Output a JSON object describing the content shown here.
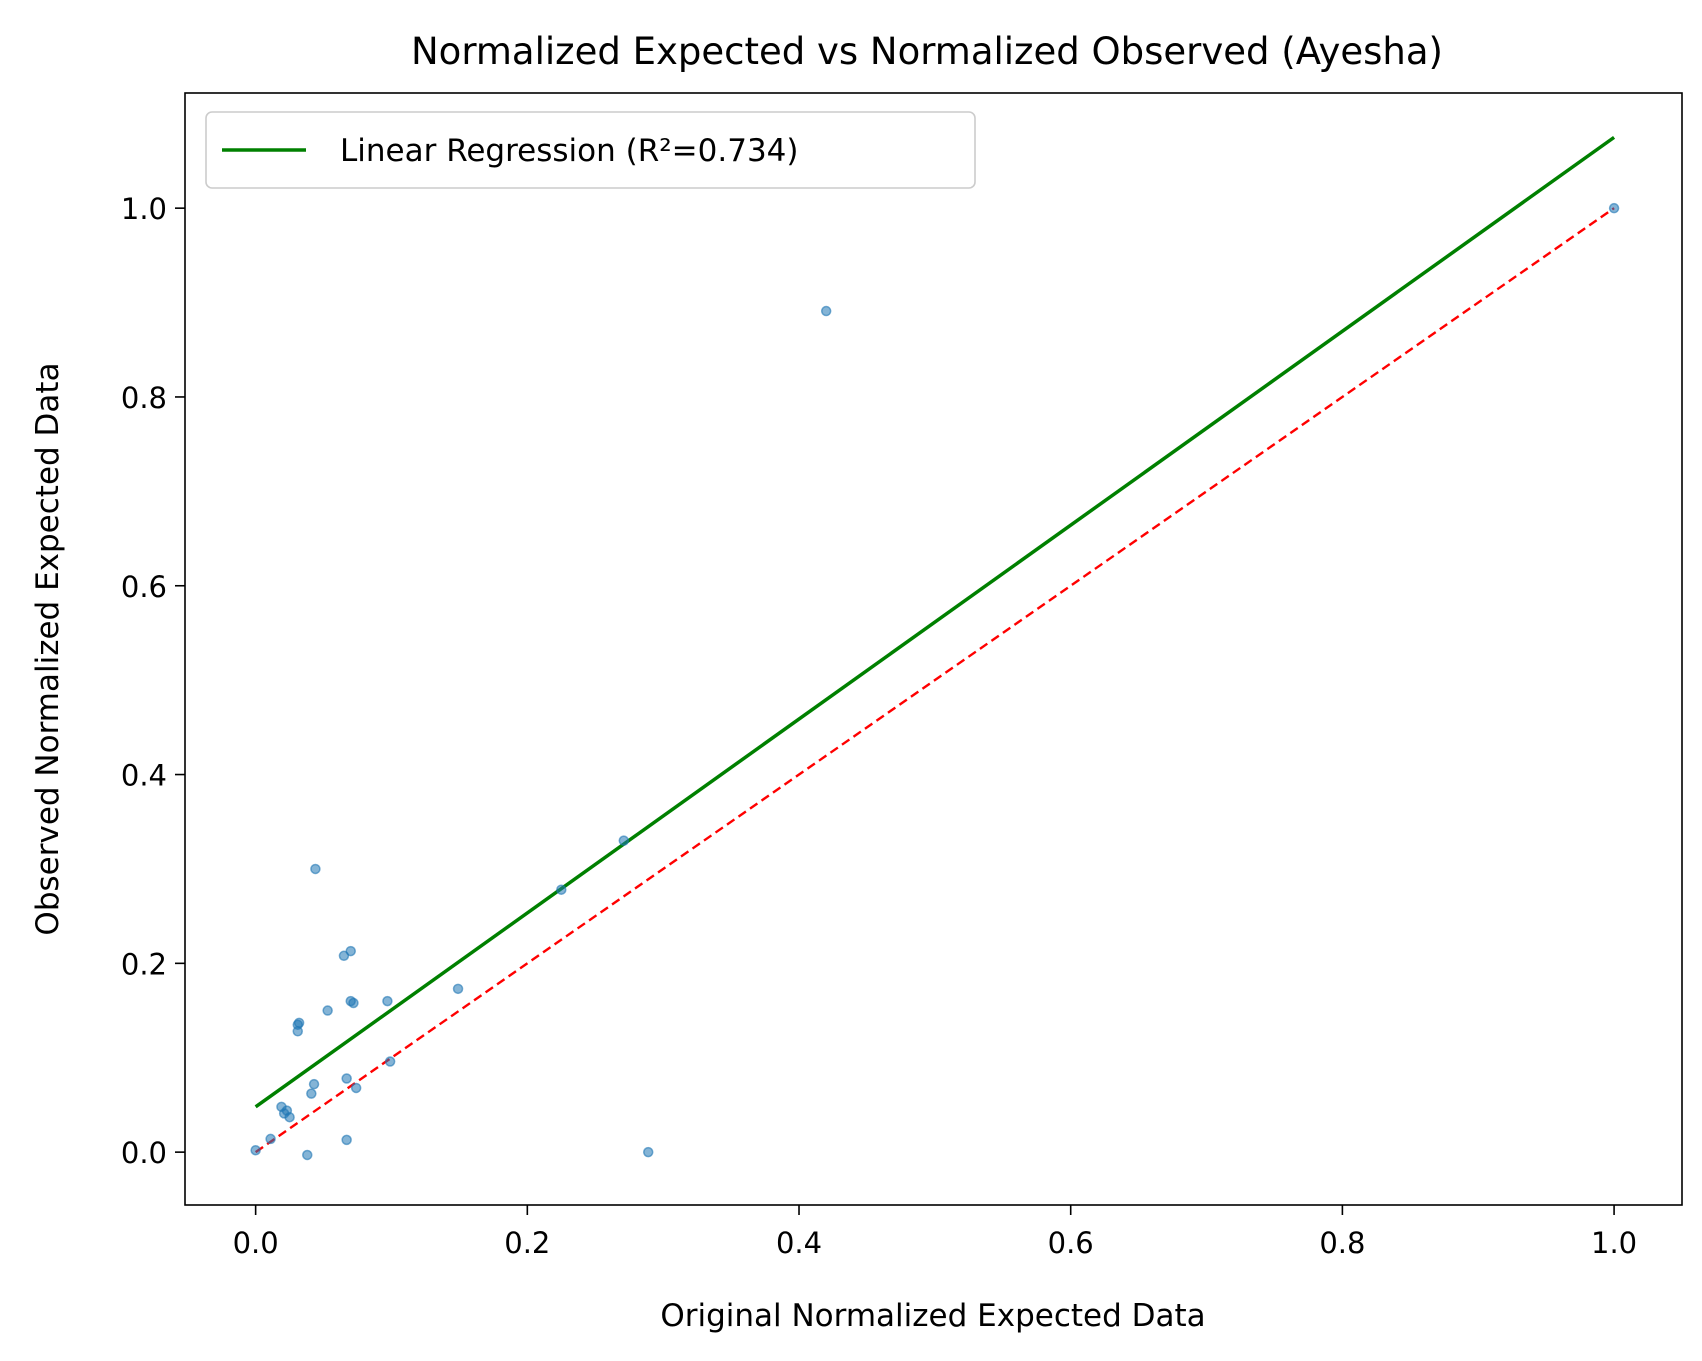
{
  "chart_data": {
    "type": "scatter",
    "title": "Normalized Expected vs Normalized Observed (Ayesha)",
    "xlabel": "Original Normalized Expected Data",
    "ylabel": "Observed Normalized Expected Data",
    "xlim": [
      -0.052,
      1.05
    ],
    "ylim": [
      -0.056,
      1.122
    ],
    "xticks": [
      "0.0",
      "0.2",
      "0.4",
      "0.6",
      "0.8",
      "1.0"
    ],
    "yticks": [
      "0.0",
      "0.2",
      "0.4",
      "0.6",
      "0.8",
      "1.0"
    ],
    "grid": false,
    "legend": {
      "placement": "upper-left",
      "entries": [
        "Linear Regression (R²=0.734)"
      ]
    },
    "colors": {
      "points": "#1f77b4",
      "regression": "#008000",
      "identity": "#ff0000"
    },
    "points": [
      {
        "x": 0.0,
        "y": 0.002
      },
      {
        "x": 0.011,
        "y": 0.014
      },
      {
        "x": 0.019,
        "y": 0.048
      },
      {
        "x": 0.021,
        "y": 0.041
      },
      {
        "x": 0.023,
        "y": 0.044
      },
      {
        "x": 0.025,
        "y": 0.037
      },
      {
        "x": 0.031,
        "y": 0.128
      },
      {
        "x": 0.031,
        "y": 0.135
      },
      {
        "x": 0.032,
        "y": 0.137
      },
      {
        "x": 0.038,
        "y": -0.003
      },
      {
        "x": 0.041,
        "y": 0.062
      },
      {
        "x": 0.043,
        "y": 0.072
      },
      {
        "x": 0.044,
        "y": 0.3
      },
      {
        "x": 0.053,
        "y": 0.15
      },
      {
        "x": 0.065,
        "y": 0.208
      },
      {
        "x": 0.067,
        "y": 0.078
      },
      {
        "x": 0.067,
        "y": 0.013
      },
      {
        "x": 0.07,
        "y": 0.213
      },
      {
        "x": 0.07,
        "y": 0.16
      },
      {
        "x": 0.072,
        "y": 0.158
      },
      {
        "x": 0.074,
        "y": 0.068
      },
      {
        "x": 0.097,
        "y": 0.16
      },
      {
        "x": 0.099,
        "y": 0.096
      },
      {
        "x": 0.149,
        "y": 0.173
      },
      {
        "x": 0.225,
        "y": 0.278
      },
      {
        "x": 0.271,
        "y": 0.33
      },
      {
        "x": 0.289,
        "y": 0.0
      },
      {
        "x": 0.42,
        "y": 0.891
      },
      {
        "x": 1.0,
        "y": 1.0
      }
    ],
    "regression_line": {
      "x": [
        0.0,
        1.0
      ],
      "y": [
        0.048,
        1.075
      ]
    },
    "identity_line": {
      "x": [
        0.0,
        1.0
      ],
      "y": [
        0.0,
        1.0
      ]
    }
  }
}
